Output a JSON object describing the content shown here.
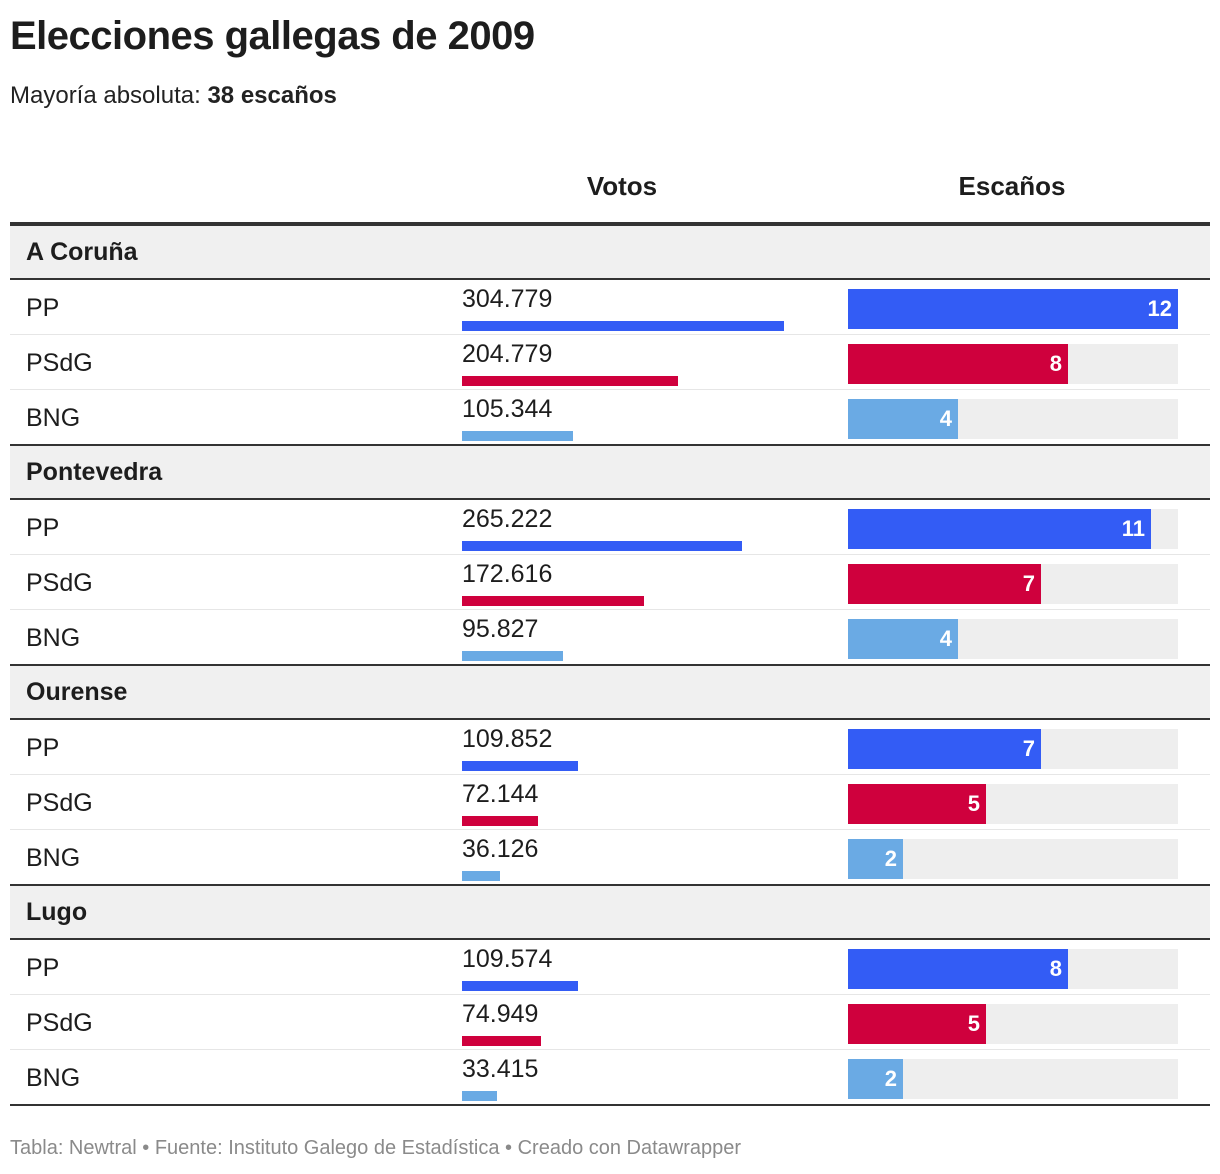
{
  "title": "Elecciones gallegas de 2009",
  "subtitle": {
    "label": "Mayoría absoluta:",
    "value": "38 escaños"
  },
  "columns": {
    "votes": "Votos",
    "seats": "Escaños"
  },
  "footer": "Tabla: Newtral • Fuente: Instituto Galego de Estadística • Creado con Datawrapper",
  "colors": {
    "PP": "#335cf5",
    "PSdG": "#cf003d",
    "BNG": "#6aaae4",
    "track": "#eeeeee"
  },
  "chart_data": {
    "type": "table",
    "scales": {
      "votes_max": 304779,
      "seats_max": 12
    },
    "groups": [
      {
        "name": "A Coruña",
        "rows": [
          {
            "party": "PP",
            "votes_label": "304.779",
            "votes": 304779,
            "seats": 12
          },
          {
            "party": "PSdG",
            "votes_label": "204.779",
            "votes": 204779,
            "seats": 8
          },
          {
            "party": "BNG",
            "votes_label": "105.344",
            "votes": 105344,
            "seats": 4
          }
        ]
      },
      {
        "name": "Pontevedra",
        "rows": [
          {
            "party": "PP",
            "votes_label": "265.222",
            "votes": 265222,
            "seats": 11
          },
          {
            "party": "PSdG",
            "votes_label": "172.616",
            "votes": 172616,
            "seats": 7
          },
          {
            "party": "BNG",
            "votes_label": "95.827",
            "votes": 95827,
            "seats": 4
          }
        ]
      },
      {
        "name": "Ourense",
        "rows": [
          {
            "party": "PP",
            "votes_label": "109.852",
            "votes": 109852,
            "seats": 7
          },
          {
            "party": "PSdG",
            "votes_label": "72.144",
            "votes": 72144,
            "seats": 5
          },
          {
            "party": "BNG",
            "votes_label": "36.126",
            "votes": 36126,
            "seats": 2
          }
        ]
      },
      {
        "name": "Lugo",
        "rows": [
          {
            "party": "PP",
            "votes_label": "109.574",
            "votes": 109574,
            "seats": 8
          },
          {
            "party": "PSdG",
            "votes_label": "74.949",
            "votes": 74949,
            "seats": 5
          },
          {
            "party": "BNG",
            "votes_label": "33.415",
            "votes": 33415,
            "seats": 2
          }
        ]
      }
    ]
  }
}
